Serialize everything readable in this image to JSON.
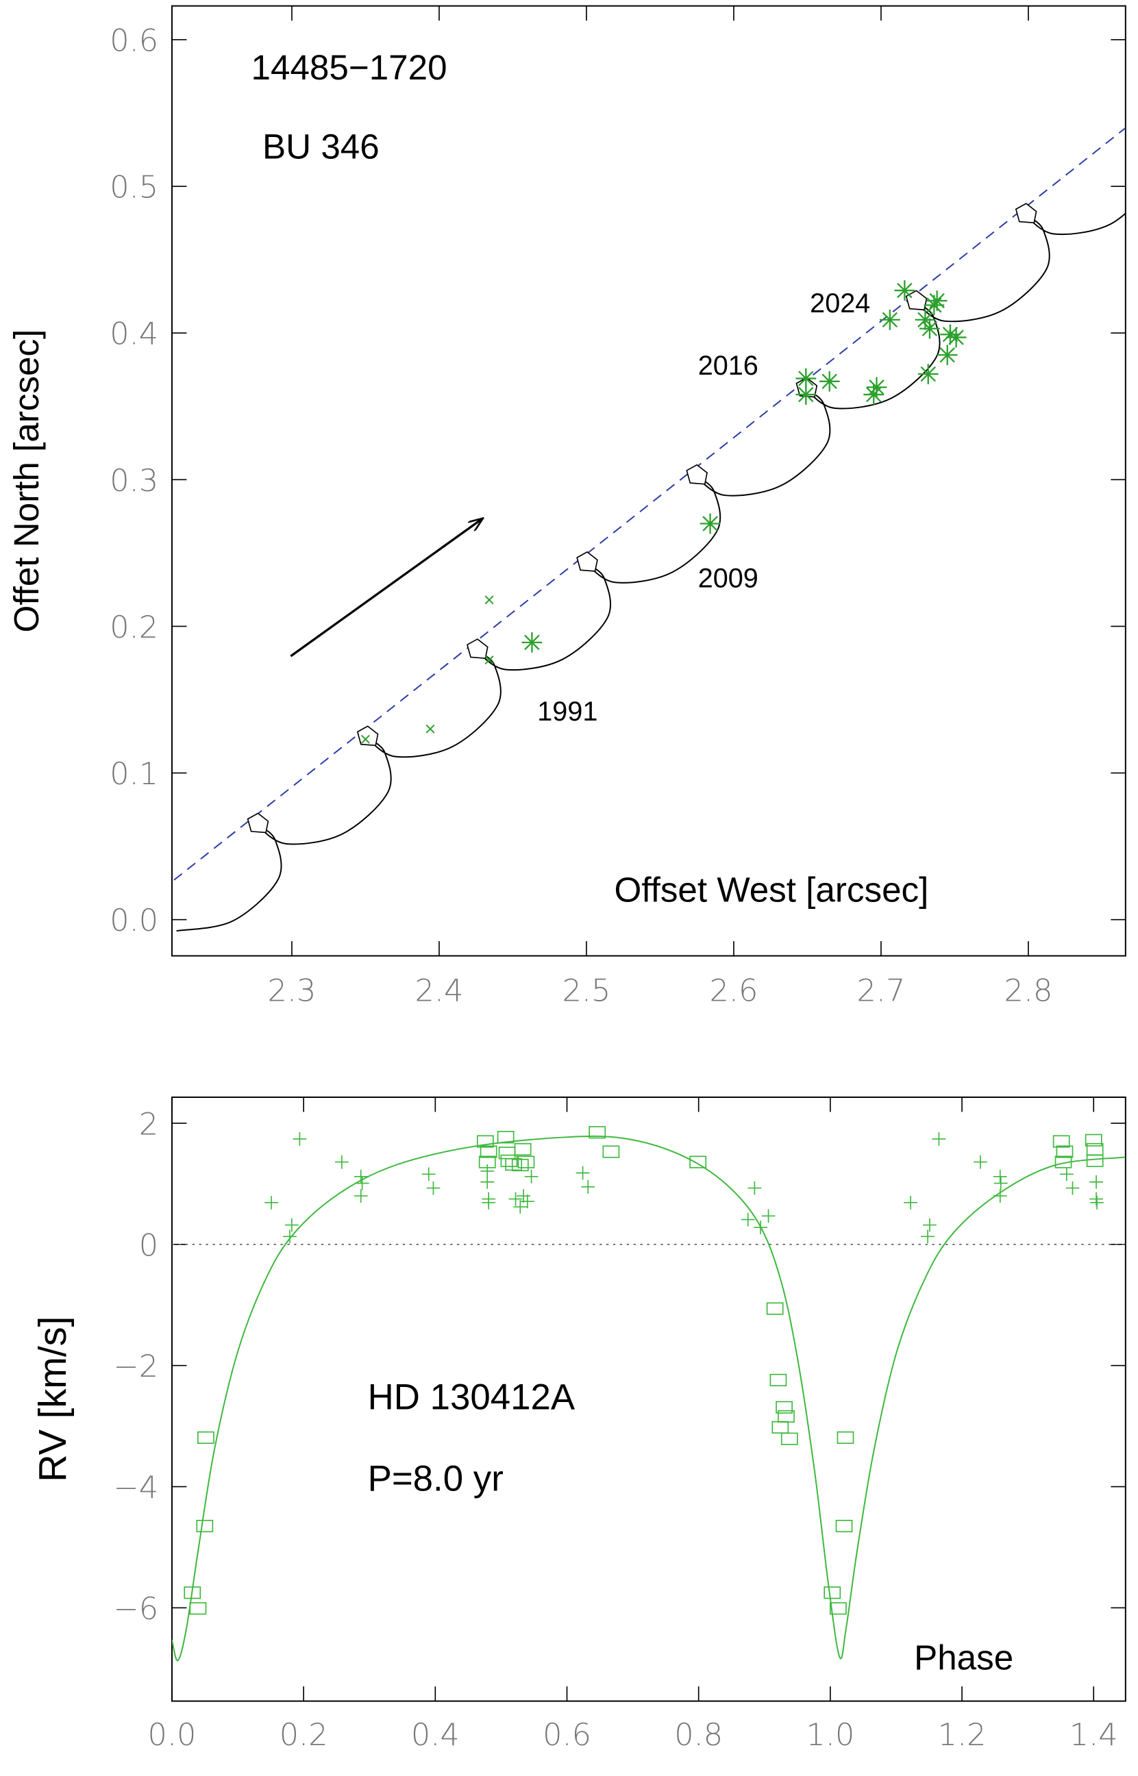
{
  "chart_data": [
    {
      "type": "scatter",
      "annotations": [
        "14485−1720",
        "BU 346",
        "1991",
        "2009",
        "2016",
        "2024"
      ],
      "xlabel": "Offset West [arcsec]",
      "ylabel": "Offet North [arcsec]",
      "xlim": [
        2.2186,
        2.866
      ],
      "ylim": [
        -0.0247,
        0.623
      ],
      "xticks": [
        2.3,
        2.4,
        2.5,
        2.6,
        2.7,
        2.8
      ],
      "yticks": [
        {
          "value": 0,
          "label": "0.0"
        },
        0.1,
        0.2,
        0.3,
        0.4,
        0.5,
        0.6
      ],
      "series": [
        {
          "style": "dashed",
          "color": "#2a3aa8",
          "x": [
            2.22,
            2.87
          ],
          "y": [
            0.027,
            0.543
          ]
        },
        {
          "style": "line",
          "color": "#000000",
          "x": [
            2.2217,
            2.2601,
            2.2908,
            2.2885,
            2.277,
            2.2962,
            2.3346,
            2.3653,
            2.363,
            2.3515,
            2.3707,
            2.4091,
            2.4398,
            2.4375,
            2.426,
            2.4452,
            2.4836,
            2.5143,
            2.512,
            2.5005,
            2.5197,
            2.5581,
            2.5888,
            2.5865,
            2.575,
            2.5942,
            2.6326,
            2.6633,
            2.661,
            2.6495,
            2.6687,
            2.7071,
            2.7378,
            2.7355,
            2.724,
            2.7432,
            2.7816,
            2.8123,
            2.81,
            2.7985,
            2.8177,
            2.8561,
            2.8868
          ],
          "y": [
            -0.0077,
            -0.0008,
            0.0277,
            0.0547,
            0.064,
            0.0517,
            0.0586,
            0.0871,
            0.1141,
            0.1234,
            0.1111,
            0.118,
            0.1465,
            0.1735,
            0.1828,
            0.1705,
            0.1774,
            0.2059,
            0.2329,
            0.2422,
            0.2299,
            0.2368,
            0.2653,
            0.2923,
            0.3016,
            0.2893,
            0.2962,
            0.3247,
            0.3517,
            0.361,
            0.3487,
            0.3556,
            0.3841,
            0.4111,
            0.4204,
            0.4081,
            0.415,
            0.4435,
            0.4705,
            0.4798,
            0.4675,
            0.4744,
            0.5029
          ]
        },
        {
          "style": "pentagon",
          "color": "#000000",
          "x": [
            2.277,
            2.3515,
            2.426,
            2.5005,
            2.575,
            2.6495,
            2.724,
            2.7985
          ],
          "y": [
            0.064,
            0.1234,
            0.1828,
            0.2422,
            0.3016,
            0.361,
            0.4204,
            0.4798
          ]
        },
        {
          "style": "asterisk",
          "color": "#2ca02c",
          "x": [
            2.463,
            2.584,
            2.649,
            2.649,
            2.665,
            2.716,
            2.706,
            2.695,
            2.697,
            2.732,
            2.73,
            2.736,
            2.738,
            2.733,
            2.747,
            2.745,
            2.751
          ],
          "y": [
            0.189,
            0.27,
            0.369,
            0.358,
            0.367,
            0.429,
            0.409,
            0.358,
            0.363,
            0.372,
            0.409,
            0.419,
            0.422,
            0.403,
            0.399,
            0.385,
            0.397
          ]
        },
        {
          "style": "cross",
          "color": "#2ca02c",
          "x": [
            2.434,
            2.434,
            2.394,
            2.35
          ],
          "y": [
            0.218,
            0.177,
            0.13,
            0.123
          ]
        }
      ]
    },
    {
      "type": "scatter",
      "annotations": [
        "HD 130412A",
        "P=8.0 yr"
      ],
      "xlabel": "Phase",
      "ylabel": "RV [km/s]",
      "xlim": [
        0,
        1.4485
      ],
      "ylim": [
        -7.54,
        2.43
      ],
      "xticks": [
        {
          "value": 0,
          "label": "0.0"
        },
        0.2,
        0.4,
        0.6,
        0.8,
        {
          "value": 1,
          "label": "1.0"
        },
        1.2,
        1.4
      ],
      "yticks": [
        {
          "value": -6,
          "label": "−6"
        },
        {
          "value": -4,
          "label": "−4"
        },
        {
          "value": -2,
          "label": "−2"
        },
        0,
        2
      ],
      "hline": 0,
      "series": [
        {
          "style": "line",
          "color": "#3cb83c",
          "x": [
            0,
            0.009,
            0.022,
            0.04,
            0.065,
            0.1,
            0.143,
            0.186,
            0.254,
            0.34,
            0.46,
            0.598,
            0.687,
            0.77,
            0.838,
            0.89,
            0.924,
            0.95,
            0.976,
            0.997,
            1.014,
            1.024,
            1.041,
            1.067,
            1.101,
            1.144,
            1.187,
            1.256,
            1.342,
            1.448
          ],
          "y": [
            -6.53,
            -6.87,
            -6.34,
            -5.04,
            -3.36,
            -1.77,
            -0.56,
            0.19,
            0.84,
            1.31,
            1.62,
            1.77,
            1.75,
            1.49,
            1.03,
            0.37,
            -0.56,
            -1.87,
            -3.73,
            -5.6,
            -6.81,
            -6.34,
            -5.04,
            -3.36,
            -1.77,
            -0.56,
            0.19,
            0.84,
            1.31,
            1.44
          ]
        },
        {
          "style": "square",
          "color": "#3cb83c",
          "x": [
            0.0515,
            0.0498,
            0.031,
            0.0395,
            0.476,
            0.481,
            0.479,
            0.507,
            0.509,
            0.512,
            0.519,
            0.529,
            0.533,
            0.538,
            0.646,
            0.667,
            0.799,
            0.916,
            0.921,
            0.924,
            0.93,
            0.933,
            0.938,
            1.023,
            1.021,
            1.003,
            1.012,
            1.351,
            1.356,
            1.354,
            1.4,
            1.402,
            1.402
          ],
          "y": [
            -3.19,
            -4.65,
            -5.75,
            -6.01,
            1.7,
            1.53,
            1.36,
            1.77,
            1.51,
            1.38,
            1.32,
            1.31,
            1.57,
            1.36,
            1.85,
            1.53,
            1.36,
            -1.06,
            -2.24,
            -3.02,
            -2.69,
            -2.84,
            -3.21,
            -3.19,
            -4.65,
            -5.75,
            -6.01,
            1.7,
            1.53,
            1.36,
            1.72,
            1.57,
            1.38
          ]
        },
        {
          "style": "plus",
          "color": "#3cb83c",
          "x": [
            0.151,
            0.182,
            0.179,
            0.194,
            0.258,
            0.287,
            0.289,
            0.287,
            0.39,
            0.397,
            0.479,
            0.479,
            0.481,
            0.481,
            0.522,
            0.529,
            0.534,
            0.54,
            0.546,
            0.624,
            0.632,
            0.885,
            0.875,
            0.894,
            0.906,
            1.122,
            1.151,
            1.148,
            1.165,
            1.228,
            1.258,
            1.259,
            1.258,
            1.359,
            1.368,
            1.404,
            1.404,
            1.405
          ],
          "y": [
            0.69,
            0.32,
            0.13,
            1.74,
            1.36,
            1.12,
            1.01,
            0.8,
            1.16,
            0.93,
            1.21,
            1.03,
            0.75,
            0.69,
            0.75,
            0.62,
            0.8,
            0.71,
            1.12,
            1.18,
            0.95,
            0.93,
            0.41,
            0.28,
            0.47,
            0.69,
            0.32,
            0.13,
            1.74,
            1.36,
            1.12,
            1.01,
            0.8,
            1.16,
            0.93,
            1.03,
            0.75,
            0.69
          ]
        }
      ]
    }
  ]
}
